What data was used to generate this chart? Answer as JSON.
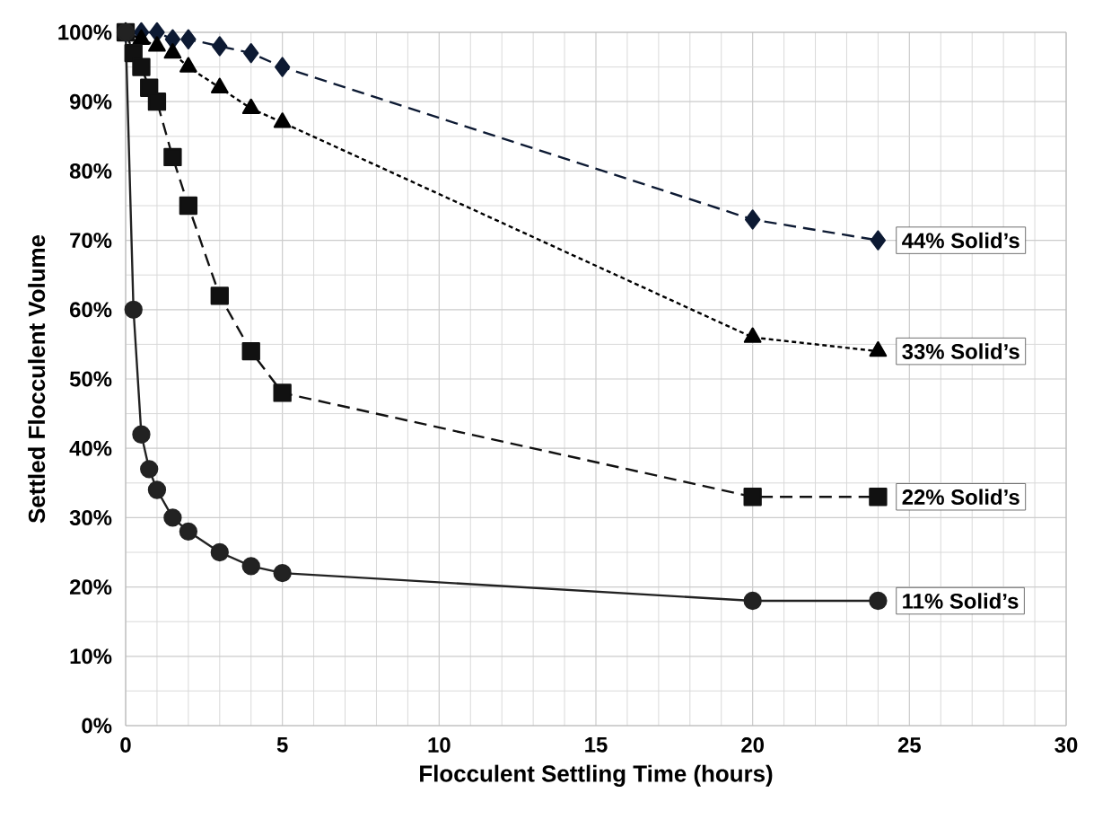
{
  "chart_data": {
    "type": "line",
    "xlabel": "Flocculent Settling Time (hours)",
    "ylabel": "Settled Flocculent Volume",
    "xlim": [
      0,
      30
    ],
    "xticks": [
      0,
      5,
      10,
      15,
      20,
      25,
      30
    ],
    "ylim": [
      0,
      100
    ],
    "yticks": [
      {
        "value": 0,
        "label": "0%"
      },
      {
        "value": 10,
        "label": "10%"
      },
      {
        "value": 20,
        "label": "20%"
      },
      {
        "value": 30,
        "label": "30%"
      },
      {
        "value": 40,
        "label": "40%"
      },
      {
        "value": 50,
        "label": "50%"
      },
      {
        "value": 60,
        "label": "60%"
      },
      {
        "value": 70,
        "label": "70%"
      },
      {
        "value": 80,
        "label": "80%"
      },
      {
        "value": 90,
        "label": "90%"
      },
      {
        "value": 100,
        "label": "100%"
      }
    ],
    "grid": true,
    "legend": false,
    "series": [
      {
        "name": "44% Solid’s",
        "color": "#0d1a33",
        "marker": "diamond",
        "line_style": "dashed",
        "x": [
          0,
          0.5,
          1,
          1.5,
          2,
          3,
          4,
          5,
          20,
          24
        ],
        "values": [
          100,
          100,
          100,
          99,
          99,
          98,
          97,
          95,
          73,
          70
        ]
      },
      {
        "name": "33% Solid’s",
        "color": "#000000",
        "marker": "triangle",
        "line_style": "dotted",
        "x": [
          0,
          0.5,
          1,
          1.5,
          2,
          3,
          4,
          5,
          20,
          24
        ],
        "values": [
          100,
          99,
          98,
          97,
          95,
          92,
          89,
          87,
          56,
          54
        ]
      },
      {
        "name": "22% Solid’s",
        "color": "#111111",
        "marker": "square",
        "line_style": "dashed",
        "x": [
          0,
          0.25,
          0.5,
          0.75,
          1,
          1.5,
          2,
          3,
          4,
          5,
          20,
          24
        ],
        "values": [
          100,
          97,
          95,
          92,
          90,
          82,
          75,
          62,
          54,
          48,
          33,
          33
        ]
      },
      {
        "name": "11% Solid’s",
        "color": "#222222",
        "marker": "circle",
        "line_style": "solid",
        "x": [
          0,
          0.25,
          0.5,
          0.75,
          1,
          1.5,
          2,
          3,
          4,
          5,
          20,
          24
        ],
        "values": [
          100,
          60,
          42,
          37,
          34,
          30,
          28,
          25,
          23,
          22,
          18,
          18
        ]
      }
    ]
  }
}
